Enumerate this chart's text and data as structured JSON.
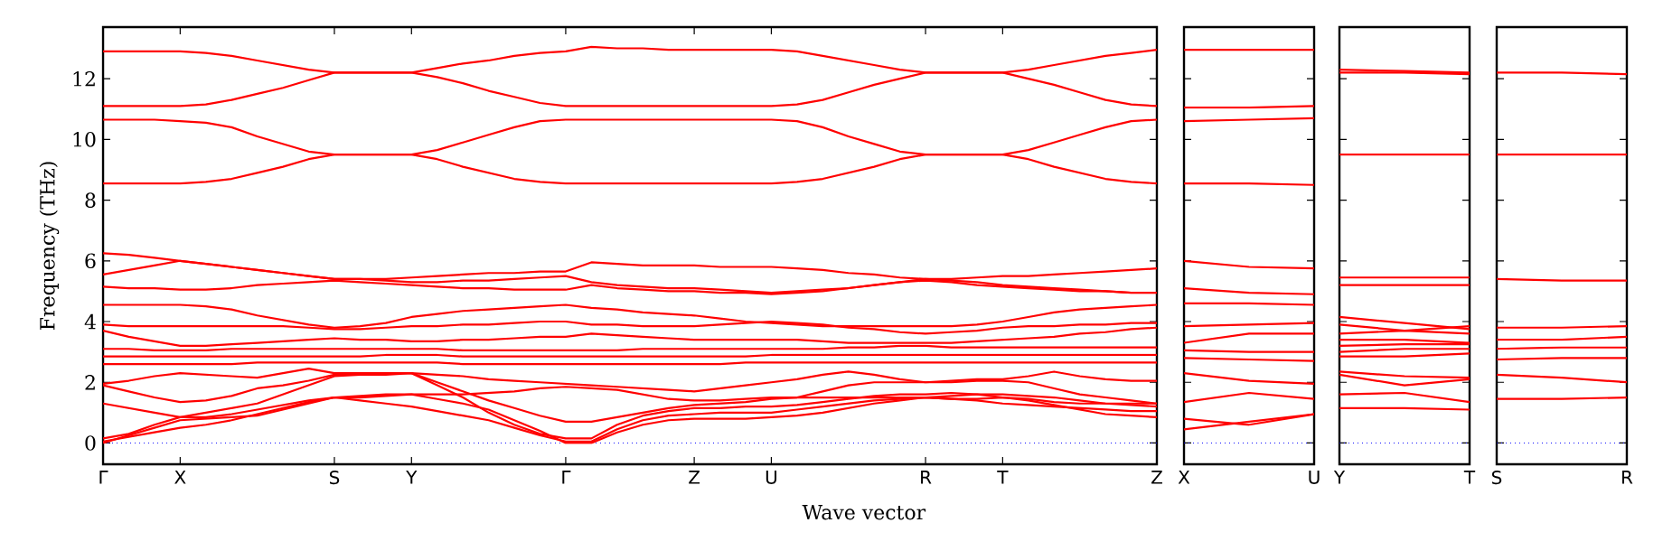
{
  "chart_data": [
    {
      "type": "line",
      "ylabel": "Frequency (THz)",
      "xlabel": "Wave vector",
      "marker": "none",
      "line_style": "solid",
      "categories": [
        "Γ",
        null,
        null,
        "X",
        null,
        null,
        null,
        null,
        null,
        "S",
        null,
        null,
        "Y",
        null,
        null,
        null,
        null,
        null,
        "Γ",
        null,
        null,
        null,
        null,
        "Z",
        null,
        null,
        "U",
        null,
        null,
        null,
        null,
        null,
        "R",
        null,
        null,
        "T",
        null,
        null,
        null,
        null,
        null,
        "Z"
      ],
      "ylim": [
        -0.7,
        13.7
      ],
      "yticks": [
        0,
        2,
        4,
        6,
        8,
        10,
        12
      ],
      "ref_lines": [
        {
          "axis": "y",
          "value": 0,
          "color": "#0000ff",
          "line_style": "dotted"
        }
      ],
      "series": [
        {
          "color": "#ff0000",
          "values": [
            12.9,
            12.9,
            12.9,
            12.9,
            12.85,
            12.75,
            12.6,
            12.45,
            12.3,
            12.2,
            12.2,
            12.2,
            12.2,
            12.35,
            12.5,
            12.6,
            12.75,
            12.85,
            12.9,
            13.05,
            13.0,
            13.0,
            12.95,
            12.95,
            12.95,
            12.95,
            12.95,
            12.9,
            12.75,
            12.6,
            12.45,
            12.3,
            12.2,
            12.2,
            12.2,
            12.2,
            12.3,
            12.45,
            12.6,
            12.75,
            12.85,
            12.95
          ]
        },
        {
          "color": "#ff0000",
          "values": [
            11.1,
            11.1,
            11.1,
            11.1,
            11.15,
            11.3,
            11.5,
            11.7,
            11.95,
            12.2,
            12.2,
            12.2,
            12.2,
            12.05,
            11.85,
            11.6,
            11.4,
            11.2,
            11.1,
            11.1,
            11.1,
            11.1,
            11.1,
            11.1,
            11.1,
            11.1,
            11.1,
            11.15,
            11.3,
            11.55,
            11.8,
            12.0,
            12.2,
            12.2,
            12.2,
            12.2,
            12.0,
            11.8,
            11.55,
            11.3,
            11.15,
            11.1
          ]
        },
        {
          "color": "#ff0000",
          "values": [
            10.65,
            10.65,
            10.65,
            10.6,
            10.55,
            10.4,
            10.1,
            9.85,
            9.6,
            9.5,
            9.5,
            9.5,
            9.5,
            9.65,
            9.9,
            10.15,
            10.4,
            10.6,
            10.65,
            10.65,
            10.65,
            10.65,
            10.65,
            10.65,
            10.65,
            10.65,
            10.65,
            10.6,
            10.4,
            10.1,
            9.85,
            9.6,
            9.5,
            9.5,
            9.5,
            9.5,
            9.65,
            9.9,
            10.15,
            10.4,
            10.6,
            10.65
          ]
        },
        {
          "color": "#ff0000",
          "values": [
            8.55,
            8.55,
            8.55,
            8.55,
            8.6,
            8.7,
            8.9,
            9.1,
            9.35,
            9.5,
            9.5,
            9.5,
            9.5,
            9.35,
            9.1,
            8.9,
            8.7,
            8.6,
            8.55,
            8.55,
            8.55,
            8.55,
            8.55,
            8.55,
            8.55,
            8.55,
            8.55,
            8.6,
            8.7,
            8.9,
            9.1,
            9.35,
            9.5,
            9.5,
            9.5,
            9.5,
            9.35,
            9.1,
            8.9,
            8.7,
            8.6,
            8.55
          ]
        },
        {
          "color": "#ff0000",
          "values": [
            6.25,
            6.2,
            6.1,
            6.0,
            5.9,
            5.8,
            5.7,
            5.6,
            5.5,
            5.4,
            5.4,
            5.4,
            5.45,
            5.5,
            5.55,
            5.6,
            5.6,
            5.65,
            5.65,
            5.95,
            5.9,
            5.85,
            5.85,
            5.85,
            5.8,
            5.8,
            5.8,
            5.75,
            5.7,
            5.6,
            5.55,
            5.45,
            5.4,
            5.4,
            5.45,
            5.5,
            5.5,
            5.55,
            5.6,
            5.65,
            5.7,
            5.75
          ]
        },
        {
          "color": "#ff0000",
          "values": [
            5.55,
            5.7,
            5.85,
            6.0,
            5.9,
            5.8,
            5.7,
            5.6,
            5.5,
            5.4,
            5.4,
            5.35,
            5.3,
            5.3,
            5.35,
            5.35,
            5.4,
            5.45,
            5.5,
            5.3,
            5.2,
            5.15,
            5.1,
            5.1,
            5.05,
            5.0,
            4.95,
            5.0,
            5.05,
            5.1,
            5.2,
            5.3,
            5.4,
            5.35,
            5.3,
            5.2,
            5.15,
            5.1,
            5.05,
            5.0,
            4.95,
            4.95
          ]
        },
        {
          "color": "#ff0000",
          "values": [
            5.15,
            5.1,
            5.1,
            5.05,
            5.05,
            5.1,
            5.2,
            5.25,
            5.3,
            5.35,
            5.3,
            5.25,
            5.2,
            5.15,
            5.1,
            5.1,
            5.05,
            5.05,
            5.05,
            5.2,
            5.1,
            5.05,
            5.0,
            5.0,
            4.95,
            4.95,
            4.9,
            4.95,
            5.0,
            5.1,
            5.2,
            5.3,
            5.35,
            5.3,
            5.2,
            5.15,
            5.1,
            5.05,
            5.0,
            5.0,
            4.95,
            4.95
          ]
        },
        {
          "color": "#ff0000",
          "values": [
            4.55,
            4.55,
            4.55,
            4.55,
            4.5,
            4.4,
            4.2,
            4.05,
            3.9,
            3.8,
            3.85,
            3.95,
            4.15,
            4.25,
            4.35,
            4.4,
            4.45,
            4.5,
            4.55,
            4.45,
            4.4,
            4.3,
            4.25,
            4.2,
            4.1,
            4.0,
            3.95,
            3.9,
            3.85,
            3.85,
            3.85,
            3.85,
            3.85,
            3.85,
            3.9,
            4.0,
            4.15,
            4.3,
            4.4,
            4.45,
            4.5,
            4.55
          ]
        },
        {
          "color": "#ff0000",
          "values": [
            3.9,
            3.85,
            3.85,
            3.85,
            3.85,
            3.85,
            3.85,
            3.85,
            3.8,
            3.75,
            3.75,
            3.8,
            3.85,
            3.85,
            3.9,
            3.9,
            3.95,
            4.0,
            4.0,
            3.9,
            3.9,
            3.85,
            3.85,
            3.85,
            3.9,
            3.95,
            4.0,
            3.95,
            3.9,
            3.8,
            3.75,
            3.65,
            3.6,
            3.65,
            3.7,
            3.8,
            3.85,
            3.85,
            3.9,
            3.9,
            3.95,
            3.95
          ]
        },
        {
          "color": "#ff0000",
          "values": [
            3.7,
            3.5,
            3.35,
            3.2,
            3.2,
            3.25,
            3.3,
            3.35,
            3.4,
            3.45,
            3.4,
            3.4,
            3.35,
            3.35,
            3.4,
            3.4,
            3.45,
            3.5,
            3.5,
            3.6,
            3.55,
            3.5,
            3.45,
            3.4,
            3.4,
            3.4,
            3.4,
            3.4,
            3.35,
            3.3,
            3.3,
            3.3,
            3.3,
            3.3,
            3.35,
            3.4,
            3.45,
            3.5,
            3.6,
            3.65,
            3.75,
            3.8
          ]
        },
        {
          "color": "#ff0000",
          "values": [
            3.1,
            3.1,
            3.05,
            3.05,
            3.05,
            3.1,
            3.1,
            3.1,
            3.1,
            3.1,
            3.1,
            3.1,
            3.1,
            3.1,
            3.05,
            3.05,
            3.05,
            3.05,
            3.05,
            3.05,
            3.05,
            3.1,
            3.1,
            3.1,
            3.1,
            3.1,
            3.1,
            3.1,
            3.1,
            3.15,
            3.15,
            3.2,
            3.2,
            3.15,
            3.15,
            3.15,
            3.15,
            3.15,
            3.15,
            3.15,
            3.15,
            3.15
          ]
        },
        {
          "color": "#ff0000",
          "values": [
            2.85,
            2.85,
            2.85,
            2.85,
            2.85,
            2.85,
            2.85,
            2.85,
            2.85,
            2.85,
            2.85,
            2.9,
            2.9,
            2.9,
            2.85,
            2.85,
            2.85,
            2.85,
            2.85,
            2.85,
            2.85,
            2.85,
            2.85,
            2.85,
            2.85,
            2.85,
            2.9,
            2.9,
            2.9,
            2.9,
            2.9,
            2.9,
            2.9,
            2.9,
            2.9,
            2.9,
            2.9,
            2.9,
            2.9,
            2.9,
            2.9,
            2.9
          ]
        },
        {
          "color": "#ff0000",
          "values": [
            2.6,
            2.6,
            2.6,
            2.6,
            2.6,
            2.6,
            2.65,
            2.65,
            2.65,
            2.65,
            2.65,
            2.65,
            2.65,
            2.65,
            2.6,
            2.6,
            2.6,
            2.6,
            2.6,
            2.6,
            2.6,
            2.6,
            2.6,
            2.6,
            2.6,
            2.65,
            2.65,
            2.65,
            2.65,
            2.65,
            2.65,
            2.65,
            2.65,
            2.65,
            2.65,
            2.65,
            2.65,
            2.65,
            2.65,
            2.65,
            2.65,
            2.65
          ]
        },
        {
          "color": "#ff0000",
          "values": [
            1.95,
            2.05,
            2.2,
            2.3,
            2.25,
            2.2,
            2.15,
            2.3,
            2.45,
            2.3,
            2.3,
            2.3,
            2.3,
            2.25,
            2.2,
            2.1,
            2.05,
            2.0,
            1.95,
            1.9,
            1.85,
            1.8,
            1.75,
            1.7,
            1.8,
            1.9,
            2.0,
            2.1,
            2.25,
            2.35,
            2.25,
            2.1,
            2.0,
            2.05,
            2.1,
            2.1,
            2.2,
            2.35,
            2.2,
            2.1,
            2.05,
            2.05
          ]
        },
        {
          "color": "#ff0000",
          "values": [
            1.9,
            1.7,
            1.5,
            1.35,
            1.4,
            1.55,
            1.8,
            1.9,
            2.05,
            2.25,
            2.25,
            2.3,
            2.3,
            2.0,
            1.7,
            1.4,
            1.15,
            0.9,
            0.7,
            0.7,
            0.85,
            1.0,
            1.15,
            1.25,
            1.3,
            1.35,
            1.45,
            1.5,
            1.7,
            1.9,
            2.0,
            2.0,
            2.0,
            2.0,
            2.05,
            2.05,
            2.0,
            1.8,
            1.6,
            1.5,
            1.4,
            1.3
          ]
        },
        {
          "color": "#ff0000",
          "values": [
            1.3,
            1.15,
            1.0,
            0.85,
            0.85,
            0.95,
            1.1,
            1.25,
            1.4,
            1.5,
            1.5,
            1.55,
            1.6,
            1.6,
            1.6,
            1.65,
            1.7,
            1.8,
            1.85,
            1.8,
            1.75,
            1.6,
            1.45,
            1.4,
            1.4,
            1.45,
            1.5,
            1.5,
            1.5,
            1.5,
            1.5,
            1.5,
            1.5,
            1.55,
            1.6,
            1.6,
            1.55,
            1.5,
            1.4,
            1.3,
            1.25,
            1.2
          ]
        },
        {
          "color": "#ff0000",
          "values": [
            0,
            0.25,
            0.5,
            0.75,
            0.8,
            0.85,
            0.9,
            1.1,
            1.3,
            1.5,
            1.55,
            1.6,
            1.6,
            1.45,
            1.3,
            1.1,
            0.75,
            0.4,
            0,
            0,
            0.35,
            0.6,
            0.75,
            0.8,
            0.8,
            0.8,
            0.85,
            0.9,
            1.0,
            1.15,
            1.3,
            1.4,
            1.5,
            1.45,
            1.4,
            1.3,
            1.25,
            1.2,
            1.15,
            1.1,
            1.05,
            1.05
          ]
        },
        {
          "color": "#ff0000",
          "values": [
            0.05,
            0.2,
            0.35,
            0.5,
            0.6,
            0.75,
            0.95,
            1.15,
            1.35,
            1.5,
            1.4,
            1.3,
            1.2,
            1.05,
            0.9,
            0.75,
            0.5,
            0.25,
            0.05,
            0.05,
            0.45,
            0.75,
            0.9,
            0.95,
            1.0,
            1.0,
            1.0,
            1.1,
            1.2,
            1.3,
            1.4,
            1.45,
            1.5,
            1.45,
            1.45,
            1.5,
            1.45,
            1.35,
            1.3,
            1.3,
            1.3,
            1.3
          ]
        },
        {
          "color": "#ff0000",
          "values": [
            0.15,
            0.3,
            0.6,
            0.85,
            1.0,
            1.15,
            1.3,
            1.6,
            1.9,
            2.2,
            2.25,
            2.25,
            2.3,
            1.9,
            1.5,
            1.0,
            0.6,
            0.3,
            0.15,
            0.15,
            0.6,
            0.9,
            1.05,
            1.15,
            1.15,
            1.2,
            1.2,
            1.25,
            1.35,
            1.45,
            1.55,
            1.6,
            1.6,
            1.65,
            1.6,
            1.5,
            1.4,
            1.25,
            1.1,
            0.95,
            0.9,
            0.85
          ]
        }
      ]
    },
    {
      "type": "line",
      "marker": "none",
      "line_style": "solid",
      "tick_labels": "x",
      "categories": [
        "X",
        null,
        "U"
      ],
      "ylim": [
        -0.7,
        13.7
      ],
      "yticks": [
        0,
        2,
        4,
        6,
        8,
        10,
        12
      ],
      "ref_lines": [
        {
          "axis": "y",
          "value": 0,
          "color": "#0000ff",
          "line_style": "dotted"
        }
      ],
      "series": [
        {
          "color": "#ff0000",
          "values": [
            12.95,
            12.95,
            12.95
          ]
        },
        {
          "color": "#ff0000",
          "values": [
            11.05,
            11.05,
            11.1
          ]
        },
        {
          "color": "#ff0000",
          "values": [
            10.6,
            10.65,
            10.7
          ]
        },
        {
          "color": "#ff0000",
          "values": [
            8.55,
            8.55,
            8.5
          ]
        },
        {
          "color": "#ff0000",
          "values": [
            6.0,
            5.8,
            5.75
          ]
        },
        {
          "color": "#ff0000",
          "values": [
            5.1,
            4.95,
            4.9
          ]
        },
        {
          "color": "#ff0000",
          "values": [
            4.6,
            4.6,
            4.55
          ]
        },
        {
          "color": "#ff0000",
          "values": [
            3.85,
            3.9,
            3.95
          ]
        },
        {
          "color": "#ff0000",
          "values": [
            3.3,
            3.6,
            3.6
          ]
        },
        {
          "color": "#ff0000",
          "values": [
            3.05,
            3.0,
            3.0
          ]
        },
        {
          "color": "#ff0000",
          "values": [
            2.8,
            2.75,
            2.7
          ]
        },
        {
          "color": "#ff0000",
          "values": [
            2.3,
            2.05,
            1.95
          ]
        },
        {
          "color": "#ff0000",
          "values": [
            1.35,
            1.65,
            1.45
          ]
        },
        {
          "color": "#ff0000",
          "values": [
            0.8,
            0.6,
            0.95
          ]
        },
        {
          "color": "#ff0000",
          "values": [
            0.45,
            0.7,
            0.95
          ]
        }
      ]
    },
    {
      "type": "line",
      "marker": "none",
      "line_style": "solid",
      "tick_labels": "x",
      "categories": [
        "Y",
        null,
        "T"
      ],
      "ylim": [
        -0.7,
        13.7
      ],
      "yticks": [
        0,
        2,
        4,
        6,
        8,
        10,
        12
      ],
      "ref_lines": [
        {
          "axis": "y",
          "value": 0,
          "color": "#0000ff",
          "line_style": "dotted"
        }
      ],
      "series": [
        {
          "color": "#ff0000",
          "values": [
            12.3,
            12.25,
            12.2
          ]
        },
        {
          "color": "#ff0000",
          "values": [
            12.2,
            12.2,
            12.15
          ]
        },
        {
          "color": "#ff0000",
          "values": [
            9.5,
            9.5,
            9.5
          ]
        },
        {
          "color": "#ff0000",
          "values": [
            5.45,
            5.45,
            5.45
          ]
        },
        {
          "color": "#ff0000",
          "values": [
            5.2,
            5.2,
            5.2
          ]
        },
        {
          "color": "#ff0000",
          "values": [
            4.15,
            3.95,
            3.75
          ]
        },
        {
          "color": "#ff0000",
          "values": [
            3.9,
            3.7,
            3.85
          ]
        },
        {
          "color": "#ff0000",
          "values": [
            3.6,
            3.7,
            3.6
          ]
        },
        {
          "color": "#ff0000",
          "values": [
            3.4,
            3.4,
            3.3
          ]
        },
        {
          "color": "#ff0000",
          "values": [
            3.2,
            3.25,
            3.25
          ]
        },
        {
          "color": "#ff0000",
          "values": [
            3.0,
            3.1,
            3.1
          ]
        },
        {
          "color": "#ff0000",
          "values": [
            2.85,
            2.85,
            2.95
          ]
        },
        {
          "color": "#ff0000",
          "values": [
            2.35,
            2.2,
            2.15
          ]
        },
        {
          "color": "#ff0000",
          "values": [
            2.25,
            1.9,
            2.1
          ]
        },
        {
          "color": "#ff0000",
          "values": [
            1.6,
            1.65,
            1.35
          ]
        },
        {
          "color": "#ff0000",
          "values": [
            1.15,
            1.15,
            1.1
          ]
        }
      ]
    },
    {
      "type": "line",
      "marker": "none",
      "line_style": "solid",
      "tick_labels": "x",
      "categories": [
        "S",
        null,
        "R"
      ],
      "ylim": [
        -0.7,
        13.7
      ],
      "yticks": [
        0,
        2,
        4,
        6,
        8,
        10,
        12
      ],
      "ref_lines": [
        {
          "axis": "y",
          "value": 0,
          "color": "#0000ff",
          "line_style": "dotted"
        }
      ],
      "series": [
        {
          "color": "#ff0000",
          "values": [
            12.2,
            12.2,
            12.15
          ]
        },
        {
          "color": "#ff0000",
          "values": [
            9.5,
            9.5,
            9.5
          ]
        },
        {
          "color": "#ff0000",
          "values": [
            5.4,
            5.35,
            5.35
          ]
        },
        {
          "color": "#ff0000",
          "values": [
            3.8,
            3.8,
            3.85
          ]
        },
        {
          "color": "#ff0000",
          "values": [
            3.4,
            3.4,
            3.5
          ]
        },
        {
          "color": "#ff0000",
          "values": [
            3.1,
            3.15,
            3.15
          ]
        },
        {
          "color": "#ff0000",
          "values": [
            2.75,
            2.8,
            2.8
          ]
        },
        {
          "color": "#ff0000",
          "values": [
            2.25,
            2.15,
            2.0
          ]
        },
        {
          "color": "#ff0000",
          "values": [
            1.45,
            1.45,
            1.5
          ]
        }
      ]
    }
  ]
}
